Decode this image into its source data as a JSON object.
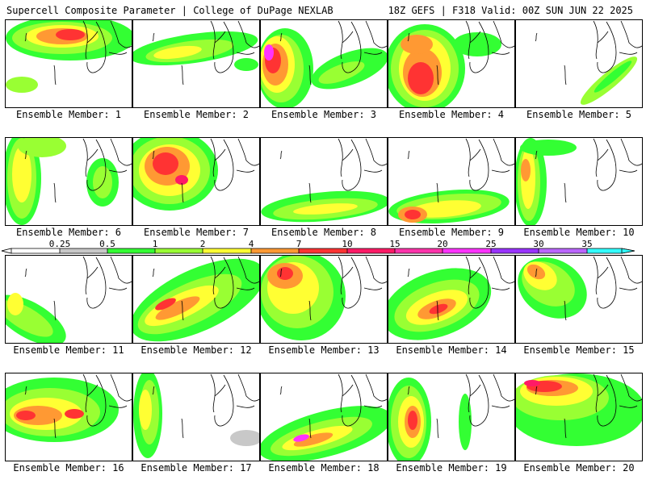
{
  "header": {
    "left": "Supercell Composite Parameter | College of DuPage NEXLAB",
    "right": "18Z GEFS | F318 Valid: 00Z SUN JUN 22 2025"
  },
  "colorbar": {
    "labels": [
      "0.25",
      "0.5",
      "1",
      "2",
      "4",
      "7",
      "10",
      "15",
      "20",
      "25",
      "30",
      "35"
    ],
    "colors": [
      "#ffffff",
      "#c8c8c8",
      "#33ff33",
      "#99ff33",
      "#ffff33",
      "#ff9933",
      "#ff3333",
      "#ff1a66",
      "#ff33aa",
      "#ff33ff",
      "#9933ff",
      "#bb66ff",
      "#33ffff"
    ]
  },
  "members": [
    {
      "caption": "Ensemble Member: 1"
    },
    {
      "caption": "Ensemble Member: 2"
    },
    {
      "caption": "Ensemble Member: 3"
    },
    {
      "caption": "Ensemble Member: 4"
    },
    {
      "caption": "Ensemble Member: 5"
    },
    {
      "caption": "Ensemble Member: 6"
    },
    {
      "caption": "Ensemble Member: 7"
    },
    {
      "caption": "Ensemble Member: 8"
    },
    {
      "caption": "Ensemble Member: 9"
    },
    {
      "caption": "Ensemble Member: 10"
    },
    {
      "caption": "Ensemble Member: 11"
    },
    {
      "caption": "Ensemble Member: 12"
    },
    {
      "caption": "Ensemble Member: 13"
    },
    {
      "caption": "Ensemble Member: 14"
    },
    {
      "caption": "Ensemble Member: 15"
    },
    {
      "caption": "Ensemble Member: 16"
    },
    {
      "caption": "Ensemble Member: 17"
    },
    {
      "caption": "Ensemble Member: 18"
    },
    {
      "caption": "Ensemble Member: 19"
    },
    {
      "caption": "Ensemble Member: 20"
    }
  ]
}
